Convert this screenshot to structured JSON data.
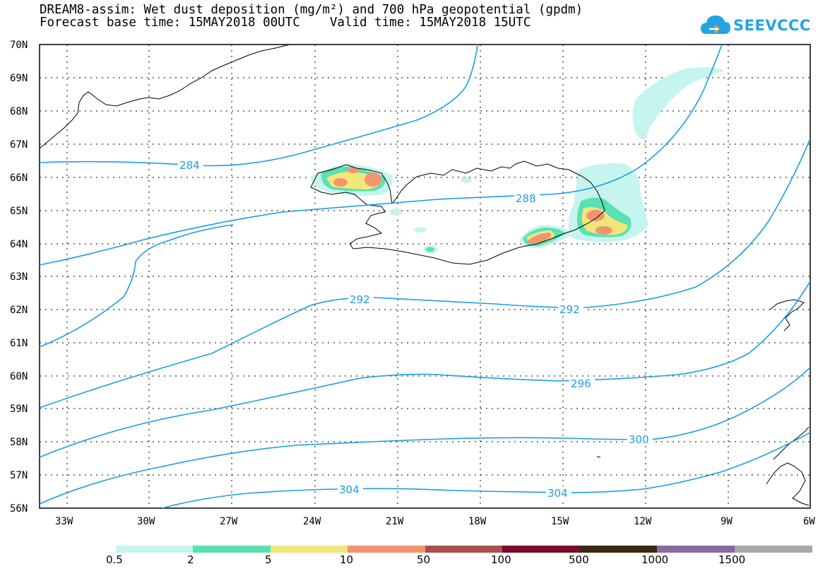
{
  "title": {
    "line1": "DREAM8-assim: Wet dust deposition (mg/m²) and 700 hPa geopotential (gpdm)",
    "line2": "Forecast base time: 15MAY2018 00UTC    Valid time: 15MAY2018 15UTC"
  },
  "logo": {
    "text": "SEEVCCC",
    "icon": "cloud-icon",
    "color": "#23a3e6"
  },
  "axes": {
    "lat_labels": [
      "70N",
      "69N",
      "68N",
      "67N",
      "66N",
      "65N",
      "64N",
      "63N",
      "62N",
      "61N",
      "60N",
      "59N",
      "58N",
      "57N",
      "56N"
    ],
    "lon_labels": [
      "33W",
      "30W",
      "27W",
      "24W",
      "21W",
      "18W",
      "15W",
      "12W",
      "9W",
      "6W"
    ]
  },
  "contours": {
    "color": "#1a9ee6",
    "labels": [
      "284",
      "288",
      "292",
      "292",
      "296",
      "300",
      "304",
      "304"
    ]
  },
  "legend": {
    "labels": [
      "0.5",
      "2",
      "5",
      "10",
      "50",
      "100",
      "500",
      "1000",
      "1500"
    ],
    "colors": [
      "#c6f4ee",
      "#5be0b2",
      "#f2e67a",
      "#f0956e",
      "#a85050",
      "#7c0a2a",
      "#3a2a12",
      "#8a6aa0",
      "#a8a8a8"
    ]
  }
}
